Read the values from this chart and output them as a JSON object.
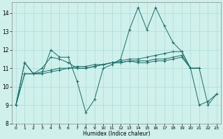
{
  "title": "",
  "xlabel": "Humidex (Indice chaleur)",
  "bg_color": "#cff0eb",
  "grid_color": "#aaddda",
  "line_color": "#1a6e68",
  "xlim": [
    -0.5,
    23.5
  ],
  "ylim": [
    8,
    14.6
  ],
  "yticks": [
    8,
    9,
    10,
    11,
    12,
    13,
    14
  ],
  "xticks": [
    0,
    1,
    2,
    3,
    4,
    5,
    6,
    7,
    8,
    9,
    10,
    11,
    12,
    13,
    14,
    15,
    16,
    17,
    18,
    19,
    20,
    21,
    22,
    23
  ],
  "lines": [
    [
      9.0,
      11.3,
      10.7,
      10.7,
      12.0,
      11.6,
      11.6,
      10.3,
      8.6,
      9.3,
      11.0,
      11.2,
      11.5,
      13.1,
      14.3,
      13.1,
      14.3,
      13.3,
      12.4,
      11.9,
      11.0,
      9.0,
      9.2,
      9.6
    ],
    [
      9.0,
      11.3,
      10.7,
      11.0,
      11.6,
      11.5,
      11.3,
      11.0,
      11.0,
      11.1,
      11.2,
      11.3,
      11.4,
      11.5,
      11.5,
      11.6,
      11.7,
      11.8,
      11.9,
      11.9,
      11.0,
      11.0,
      null,
      null
    ],
    [
      9.0,
      10.7,
      10.7,
      10.7,
      10.8,
      10.9,
      11.0,
      11.0,
      11.0,
      11.1,
      11.2,
      11.3,
      11.3,
      11.4,
      11.4,
      11.4,
      11.5,
      11.5,
      11.6,
      11.7,
      11.0,
      11.0,
      null,
      null
    ],
    [
      9.0,
      10.7,
      10.7,
      10.8,
      10.9,
      11.0,
      11.0,
      11.1,
      11.1,
      11.2,
      11.2,
      11.3,
      11.3,
      11.4,
      11.3,
      11.3,
      11.4,
      11.4,
      11.5,
      11.6,
      11.0,
      11.0,
      9.0,
      9.6
    ]
  ]
}
